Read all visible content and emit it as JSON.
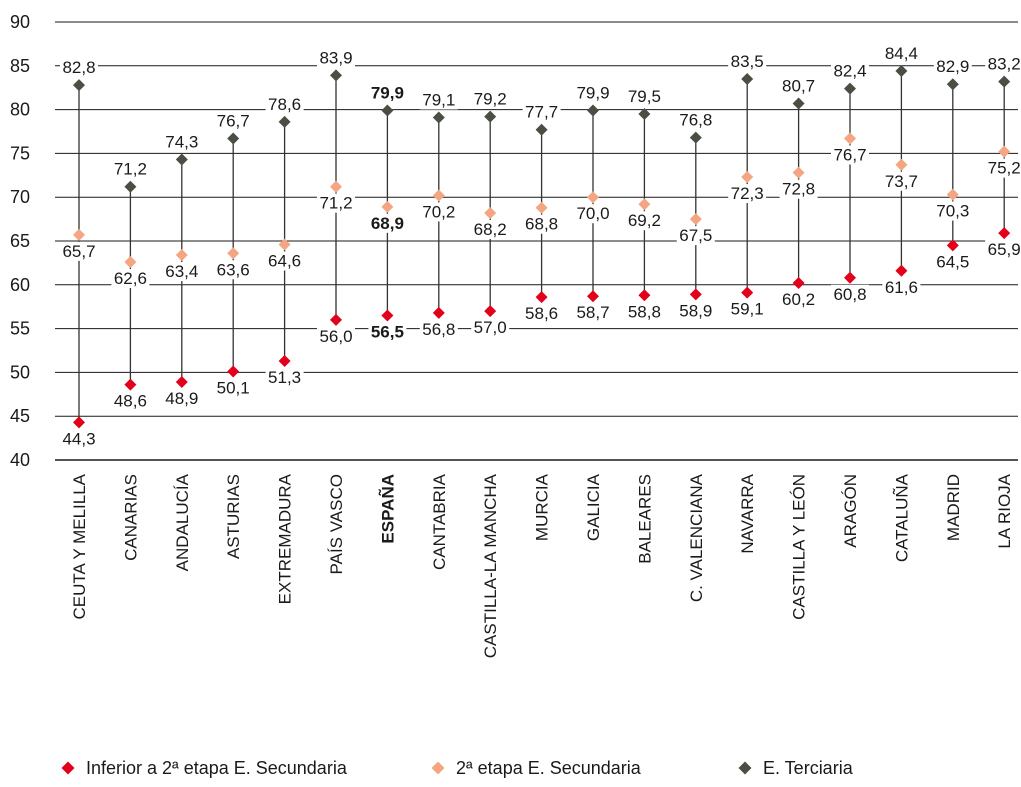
{
  "chart_data": {
    "type": "scatter",
    "ylim": [
      40,
      90
    ],
    "yticks": [
      "40",
      "45",
      "50",
      "55",
      "60",
      "65",
      "70",
      "75",
      "80",
      "85",
      "90"
    ],
    "grid": "horizontal",
    "legend_position": "bottom",
    "highlight_category": "ESPAÑA",
    "categories": [
      "CEUTA Y MELILLA",
      "CANARIAS",
      "ANDALUCÍA",
      "ASTURIAS",
      "EXTREMADURA",
      "PAÍS VASCO",
      "ESPAÑA",
      "CANTABRIA",
      "CASTILLA-LA MANCHA",
      "MURCIA",
      "GALICIA",
      "BALEARES",
      "C. VALENCIANA",
      "NAVARRA",
      "CASTILLA Y LEÓN",
      "ARAGÓN",
      "CATALUÑA",
      "MADRID",
      "LA RIOJA"
    ],
    "series": [
      {
        "name": "Inferior a 2ª etapa E. Secundaria",
        "color": "#e3001b",
        "values": [
          44.3,
          48.6,
          48.9,
          50.1,
          51.3,
          56.0,
          56.5,
          56.8,
          57.0,
          58.6,
          58.7,
          58.8,
          58.9,
          59.1,
          60.2,
          60.8,
          61.6,
          64.5,
          65.9
        ],
        "labels": [
          "44,3",
          "48,6",
          "48,9",
          "50,1",
          "51,3",
          "56,0",
          "56,5",
          "56,8",
          "57,0",
          "58,6",
          "58,7",
          "58,8",
          "58,9",
          "59,1",
          "60,2",
          "60,8",
          "61,6",
          "64,5",
          "65,9"
        ]
      },
      {
        "name": "2ª etapa E. Secundaria",
        "color": "#f4a582",
        "values": [
          65.7,
          62.6,
          63.4,
          63.6,
          64.6,
          71.2,
          68.9,
          70.2,
          68.2,
          68.8,
          70.0,
          69.2,
          67.5,
          72.3,
          72.8,
          76.7,
          73.7,
          70.3,
          75.2
        ],
        "labels": [
          "65,7",
          "62,6",
          "63,4",
          "63,6",
          "64,6",
          "71,2",
          "68,9",
          "70,2",
          "68,2",
          "68,8",
          "70,0",
          "69,2",
          "67,5",
          "72,3",
          "72,8",
          "76,7",
          "73,7",
          "70,3",
          "75,2"
        ]
      },
      {
        "name": "E. Terciaria",
        "color": "#4a4f43",
        "values": [
          82.8,
          71.2,
          74.3,
          76.7,
          78.6,
          83.9,
          79.9,
          79.1,
          79.2,
          77.7,
          79.9,
          79.5,
          76.8,
          83.5,
          80.7,
          82.4,
          84.4,
          82.9,
          83.2
        ],
        "labels": [
          "82,8",
          "71,2",
          "74,3",
          "76,7",
          "78,6",
          "83,9",
          "79,9",
          "79,1",
          "79,2",
          "77,7",
          "79,9",
          "79,5",
          "76,8",
          "83,5",
          "80,7",
          "82,4",
          "84,4",
          "82,9",
          "83,2"
        ]
      }
    ]
  }
}
